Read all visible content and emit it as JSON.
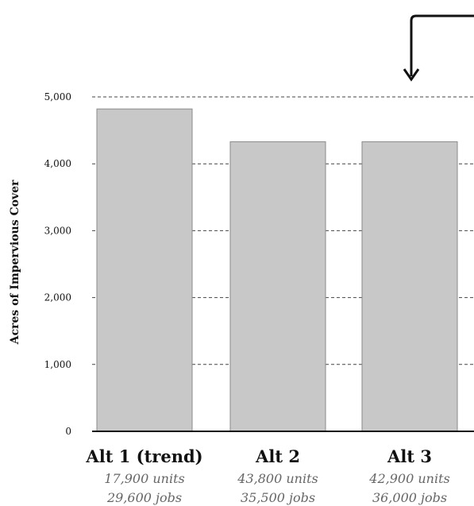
{
  "chart_data": {
    "type": "bar",
    "categories": [
      "Alt 1 (trend)",
      "Alt 2",
      "Alt 3"
    ],
    "values": [
      4820,
      4330,
      4330
    ],
    "sublabels": [
      [
        "17,900 units",
        "29,600 jobs"
      ],
      [
        "43,800 units",
        "35,500 jobs"
      ],
      [
        "42,900 units",
        "36,000 jobs"
      ]
    ],
    "title": "",
    "xlabel": "",
    "ylabel": "Acres of Impervious Cover",
    "ylim": [
      0,
      5000
    ],
    "yticks": [
      0,
      1000,
      2000,
      3000,
      4000,
      5000
    ],
    "ytick_labels": [
      "0",
      "1,000",
      "2,000",
      "3,000",
      "4,000",
      "5,000"
    ],
    "grid": true,
    "grid_style": "dashed",
    "bar_color": "#c8c8c9",
    "bar_edge_color": "#8a8a8a",
    "annotation": "arrow pointing down to Alt 3 bar",
    "legend": "none"
  }
}
